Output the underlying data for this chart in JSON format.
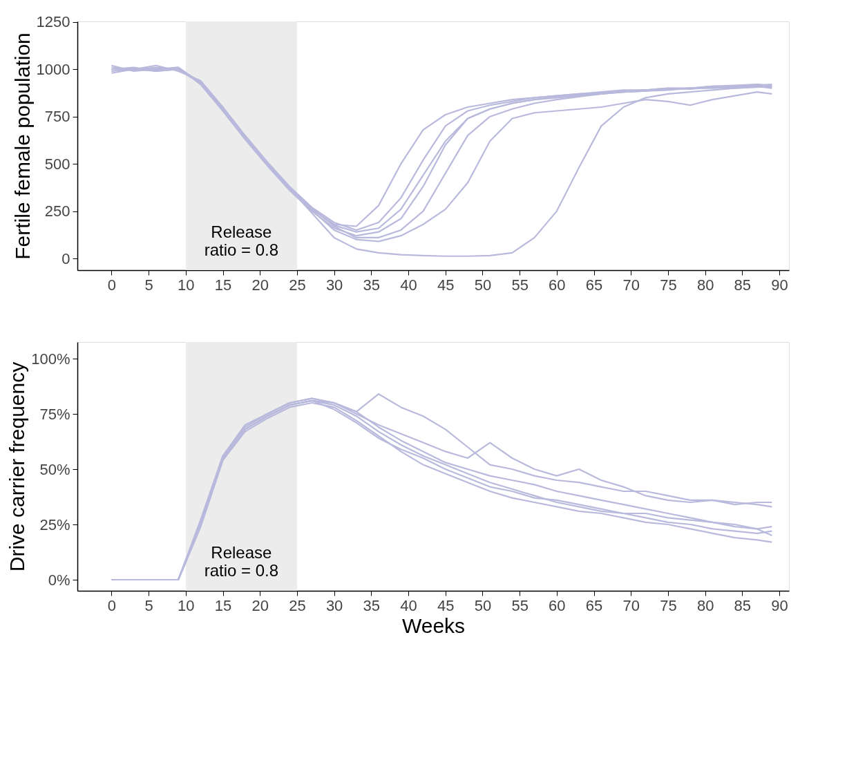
{
  "chart_data": [
    {
      "type": "line",
      "ylabel": "Fertile female population",
      "xlim": [
        -4.6,
        91.3
      ],
      "ylim": [
        -62,
        1253
      ],
      "xticks": [
        0,
        5,
        10,
        15,
        20,
        25,
        30,
        35,
        40,
        45,
        50,
        55,
        60,
        65,
        70,
        75,
        80,
        85,
        90
      ],
      "yticks": [
        0,
        250,
        500,
        750,
        1000,
        1250
      ],
      "grid": false,
      "x": [
        0,
        3,
        6,
        9,
        12,
        15,
        18,
        21,
        24,
        27,
        30,
        33,
        36,
        39,
        42,
        45,
        48,
        51,
        54,
        57,
        60,
        63,
        66,
        69,
        72,
        75,
        78,
        81,
        84,
        87,
        89
      ],
      "bands": [
        {
          "axis": "x",
          "from": 10,
          "to": 25,
          "label": "Release\nratio = 0.8",
          "color": "#ececec"
        }
      ],
      "series": [
        {
          "color": "#b9b9dd",
          "values": [
            1000,
            1010,
            990,
            1000,
            930,
            790,
            640,
            500,
            370,
            260,
            180,
            170,
            280,
            500,
            680,
            760,
            800,
            820,
            840,
            850,
            860,
            870,
            880,
            890,
            890,
            900,
            900,
            910,
            910,
            920,
            915
          ]
        },
        {
          "color": "#b9b9dd",
          "values": [
            980,
            1000,
            1020,
            990,
            940,
            800,
            650,
            510,
            380,
            270,
            190,
            150,
            190,
            320,
            520,
            700,
            780,
            810,
            830,
            850,
            860,
            870,
            875,
            880,
            890,
            895,
            900,
            905,
            910,
            915,
            920
          ]
        },
        {
          "color": "#b9b9dd",
          "values": [
            1020,
            990,
            1000,
            1010,
            920,
            780,
            630,
            490,
            360,
            250,
            160,
            120,
            140,
            210,
            380,
            600,
            740,
            790,
            820,
            840,
            850,
            860,
            870,
            885,
            890,
            900,
            895,
            905,
            900,
            910,
            905
          ]
        },
        {
          "color": "#b9b9dd",
          "values": [
            990,
            1000,
            1010,
            1000,
            935,
            795,
            645,
            505,
            375,
            265,
            170,
            110,
            110,
            150,
            250,
            450,
            650,
            750,
            790,
            820,
            840,
            855,
            870,
            880,
            885,
            890,
            900,
            900,
            905,
            910,
            900
          ]
        },
        {
          "color": "#b9b9dd",
          "values": [
            1000,
            995,
            1005,
            1000,
            925,
            785,
            635,
            495,
            365,
            255,
            150,
            100,
            90,
            120,
            180,
            260,
            400,
            620,
            740,
            770,
            780,
            790,
            800,
            820,
            840,
            830,
            810,
            840,
            860,
            880,
            870
          ]
        },
        {
          "color": "#b9b9dd",
          "values": [
            1010,
            1000,
            990,
            1000,
            930,
            790,
            640,
            500,
            370,
            240,
            110,
            50,
            30,
            20,
            15,
            12,
            12,
            15,
            30,
            110,
            250,
            480,
            700,
            800,
            850,
            870,
            880,
            890,
            900,
            905,
            910
          ]
        },
        {
          "color": "#b9b9dd",
          "values": [
            1000,
            1005,
            995,
            1010,
            928,
            792,
            642,
            502,
            372,
            262,
            175,
            140,
            160,
            260,
            440,
            620,
            740,
            790,
            820,
            840,
            855,
            865,
            870,
            880,
            885,
            895,
            900,
            910,
            915,
            920,
            910
          ]
        }
      ]
    },
    {
      "type": "line",
      "xlabel": "Weeks",
      "ylabel": "Drive carrier frequency",
      "xlim": [
        -4.6,
        91.3
      ],
      "ylim": [
        -0.05,
        1.075
      ],
      "xticks": [
        0,
        5,
        10,
        15,
        20,
        25,
        30,
        35,
        40,
        45,
        50,
        55,
        60,
        65,
        70,
        75,
        80,
        85,
        90
      ],
      "yticks": [
        {
          "value": 0,
          "label": "0%"
        },
        {
          "value": 0.25,
          "label": "25%"
        },
        {
          "value": 0.5,
          "label": "50%"
        },
        {
          "value": 0.75,
          "label": "75%"
        },
        {
          "value": 1,
          "label": "100%"
        }
      ],
      "grid": false,
      "x": [
        0,
        3,
        6,
        9,
        12,
        15,
        18,
        21,
        24,
        27,
        30,
        33,
        36,
        39,
        42,
        45,
        48,
        51,
        54,
        57,
        60,
        63,
        66,
        69,
        72,
        75,
        78,
        81,
        84,
        87,
        89
      ],
      "bands": [
        {
          "axis": "x",
          "from": 10,
          "to": 25,
          "label": "Release\nratio = 0.8",
          "color": "#ececec"
        }
      ],
      "series": [
        {
          "color": "#b9b9dd",
          "values": [
            0,
            0,
            0,
            0,
            0.25,
            0.55,
            0.68,
            0.74,
            0.79,
            0.81,
            0.79,
            0.74,
            0.67,
            0.61,
            0.56,
            0.52,
            0.48,
            0.44,
            0.41,
            0.38,
            0.35,
            0.33,
            0.31,
            0.3,
            0.28,
            0.26,
            0.25,
            0.23,
            0.22,
            0.21,
            0.22
          ]
        },
        {
          "color": "#b9b9dd",
          "values": [
            0,
            0,
            0,
            0,
            0.27,
            0.56,
            0.69,
            0.75,
            0.8,
            0.82,
            0.8,
            0.76,
            0.84,
            0.78,
            0.74,
            0.68,
            0.6,
            0.52,
            0.5,
            0.47,
            0.45,
            0.44,
            0.42,
            0.4,
            0.4,
            0.38,
            0.36,
            0.36,
            0.35,
            0.34,
            0.33
          ]
        },
        {
          "color": "#b9b9dd",
          "values": [
            0,
            0,
            0,
            0,
            0.24,
            0.54,
            0.67,
            0.73,
            0.78,
            0.8,
            0.78,
            0.72,
            0.65,
            0.58,
            0.52,
            0.48,
            0.44,
            0.4,
            0.37,
            0.35,
            0.33,
            0.31,
            0.3,
            0.28,
            0.26,
            0.25,
            0.23,
            0.21,
            0.19,
            0.18,
            0.17
          ]
        },
        {
          "color": "#b9b9dd",
          "values": [
            0,
            0,
            0,
            0,
            0.26,
            0.56,
            0.7,
            0.75,
            0.8,
            0.82,
            0.8,
            0.75,
            0.7,
            0.66,
            0.62,
            0.58,
            0.55,
            0.62,
            0.55,
            0.5,
            0.47,
            0.5,
            0.45,
            0.42,
            0.38,
            0.36,
            0.35,
            0.36,
            0.34,
            0.35,
            0.35
          ]
        },
        {
          "color": "#b9b9dd",
          "values": [
            0,
            0,
            0,
            0,
            0.25,
            0.55,
            0.68,
            0.74,
            0.79,
            0.81,
            0.77,
            0.71,
            0.64,
            0.59,
            0.55,
            0.5,
            0.46,
            0.42,
            0.4,
            0.37,
            0.36,
            0.34,
            0.32,
            0.3,
            0.3,
            0.28,
            0.27,
            0.26,
            0.24,
            0.23,
            0.24
          ]
        },
        {
          "color": "#b9b9dd",
          "values": [
            0,
            0,
            0,
            0,
            0.24,
            0.54,
            0.68,
            0.74,
            0.79,
            0.81,
            0.8,
            0.76,
            0.69,
            0.63,
            0.58,
            0.53,
            0.5,
            0.47,
            0.45,
            0.43,
            0.4,
            0.38,
            0.36,
            0.34,
            0.32,
            0.3,
            0.28,
            0.26,
            0.25,
            0.23,
            0.2
          ]
        }
      ]
    }
  ]
}
